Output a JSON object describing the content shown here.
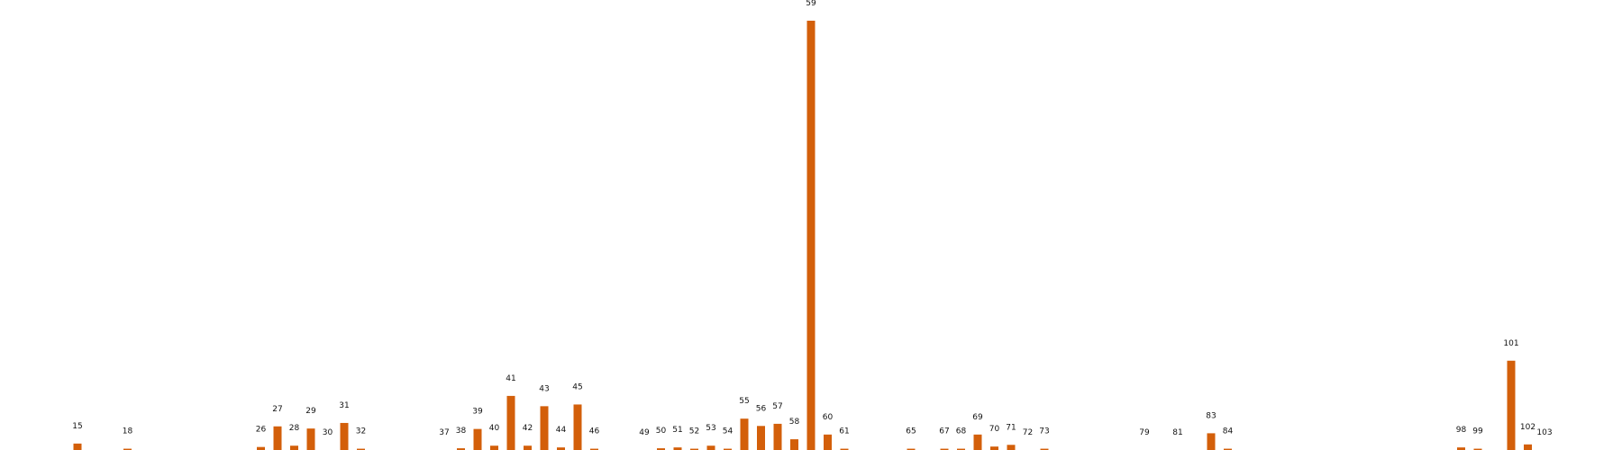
{
  "chart_data": {
    "type": "bar",
    "title": "",
    "xlabel": "",
    "ylabel": "",
    "grid": false,
    "bar_color": "#d35f0a",
    "label_color": "#111111",
    "ylim": [
      0,
      100
    ],
    "categories": [
      "15",
      "18",
      "26",
      "27",
      "28",
      "29",
      "30",
      "31",
      "32",
      "37",
      "38",
      "39",
      "40",
      "41",
      "42",
      "43",
      "44",
      "45",
      "46",
      "49",
      "50",
      "51",
      "52",
      "53",
      "54",
      "55",
      "56",
      "57",
      "58",
      "59",
      "60",
      "61",
      "65",
      "67",
      "68",
      "69",
      "70",
      "71",
      "72",
      "73",
      "79",
      "81",
      "83",
      "84",
      "98",
      "99",
      "101",
      "102",
      "103"
    ],
    "values": [
      1.5,
      0.3,
      0.7,
      5.5,
      1.0,
      5.0,
      0.0,
      6.3,
      0.3,
      0.0,
      0.4,
      4.9,
      1.0,
      12.6,
      1.0,
      10.2,
      0.6,
      10.6,
      0.3,
      0.0,
      0.4,
      0.6,
      0.3,
      1.0,
      0.3,
      7.3,
      5.6,
      6.1,
      2.5,
      100.0,
      3.6,
      0.3,
      0.3,
      0.3,
      0.3,
      3.6,
      0.8,
      1.2,
      0.0,
      0.3,
      0.0,
      0.0,
      3.9,
      0.3,
      0.6,
      0.3,
      20.8,
      1.3,
      0.0
    ]
  }
}
